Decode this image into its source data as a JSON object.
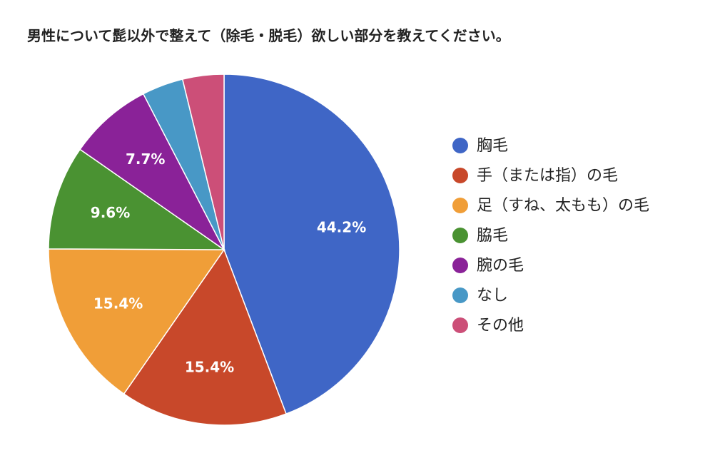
{
  "chart_data": {
    "type": "pie",
    "title": "男性について髭以外で整えて（除毛・脱毛）欲しい部分を教えてください。",
    "categories": [
      "胸毛",
      "手（または指）の毛",
      "足（すね、太もも）の毛",
      "脇毛",
      "腕の毛",
      "なし",
      "その他"
    ],
    "values": [
      44.2,
      15.4,
      15.4,
      9.6,
      7.7,
      3.8,
      3.8
    ],
    "value_labels": [
      "44.2%",
      "15.4%",
      "15.4%",
      "9.6%",
      "7.7%",
      null,
      null
    ],
    "colors": [
      "#3f66c6",
      "#c8482a",
      "#f09e38",
      "#4a9232",
      "#8a2298",
      "#4898c6",
      "#cc4f78"
    ],
    "legend": "right"
  }
}
